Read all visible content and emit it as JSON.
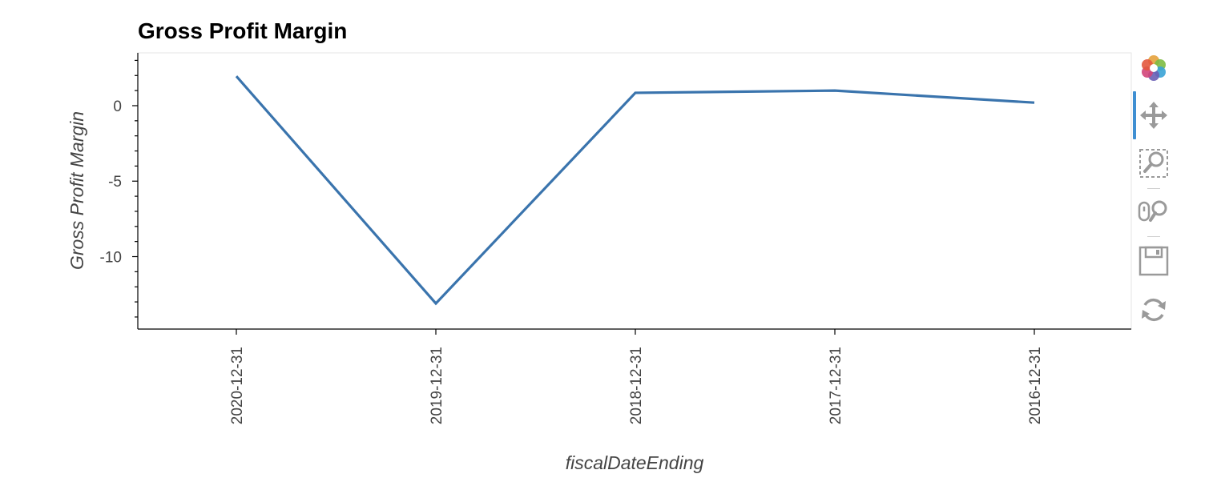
{
  "chart_data": {
    "type": "line",
    "title": "Gross Profit Margin",
    "xlabel": "fiscalDateEnding",
    "ylabel": "Gross Profit Margin",
    "categories": [
      "2020-12-31",
      "2019-12-31",
      "2018-12-31",
      "2017-12-31",
      "2016-12-31"
    ],
    "series": [
      {
        "values": [
          1.95,
          -13.1,
          0.85,
          1.0,
          0.2
        ],
        "color": "#3a74ad"
      }
    ],
    "ylim": [
      -14.8,
      3.5
    ],
    "yticks": [
      0,
      -5,
      -10
    ],
    "yticks_labels": [
      "0",
      "-5",
      "-10"
    ],
    "y_minor_step": 1,
    "grid": false,
    "legend": "none"
  },
  "toolbar": {
    "tools": [
      {
        "name": "bokeh-logo-icon",
        "interactable": true
      },
      {
        "name": "pan-tool-icon",
        "interactable": true,
        "active": true
      },
      {
        "name": "box-zoom-tool-icon",
        "interactable": true
      },
      {
        "name": "wheel-zoom-tool-icon",
        "interactable": true
      },
      {
        "name": "save-tool-icon",
        "interactable": true
      },
      {
        "name": "reset-tool-icon",
        "interactable": true
      }
    ]
  }
}
